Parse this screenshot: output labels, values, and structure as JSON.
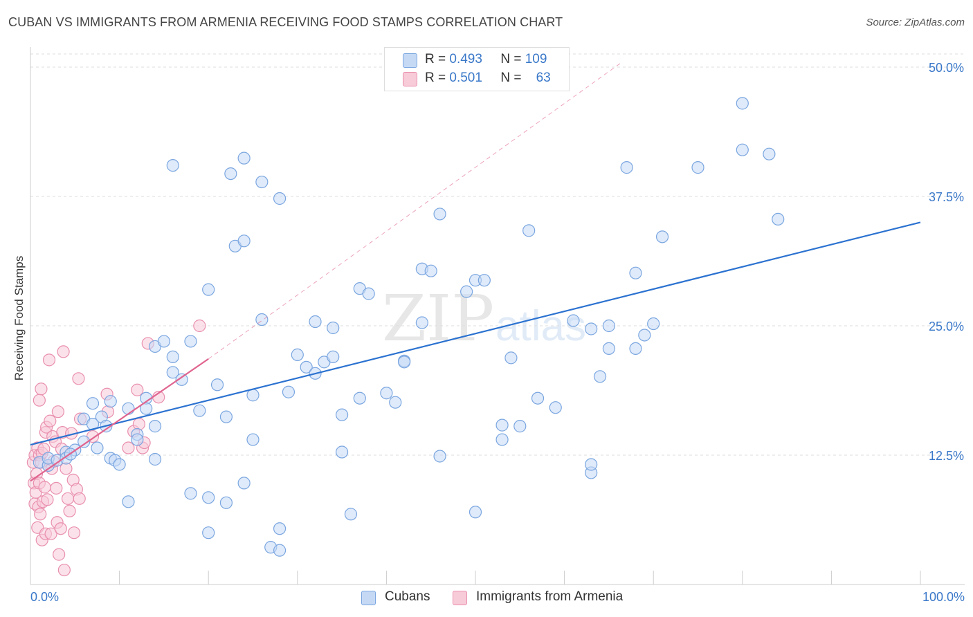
{
  "header": {
    "title": "CUBAN VS IMMIGRANTS FROM ARMENIA RECEIVING FOOD STAMPS CORRELATION CHART",
    "source": "Source: ZipAtlas.com"
  },
  "watermark": {
    "zip": "ZIP",
    "atlas": "atlas"
  },
  "legend": {
    "row1": {
      "r_label": "R =",
      "r_value": "0.493",
      "n_label": "N =",
      "n_value": "109"
    },
    "row2": {
      "r_label": "R =",
      "r_value": "0.501",
      "n_label": "N =",
      "n_value": "63"
    }
  },
  "colors": {
    "blue_fill": "#c5d9f5",
    "blue_stroke": "#7aa6e0",
    "blue_line": "#2b72d0",
    "pink_fill": "#f8cbd8",
    "pink_stroke": "#e98fae",
    "pink_line": "#e0648f",
    "grid": "#dddddd",
    "tick_label": "#3a78c9"
  },
  "chart_data": {
    "type": "scatter",
    "title": "CUBAN VS IMMIGRANTS FROM ARMENIA RECEIVING FOOD STAMPS CORRELATION CHART",
    "xlabel": "",
    "ylabel": "Receiving Food Stamps",
    "xlim": [
      0,
      100
    ],
    "ylim": [
      0,
      52
    ],
    "x_tick_labels": [
      "0.0%",
      "100.0%"
    ],
    "y_ticks": [
      12.5,
      25.0,
      37.5,
      50.0
    ],
    "y_tick_labels": [
      "12.5%",
      "25.0%",
      "37.5%",
      "50.0%"
    ],
    "grid": true,
    "legend_position": "bottom-center",
    "series": [
      {
        "name": "Cubans",
        "r": 0.493,
        "n": 109,
        "trend": {
          "x": [
            0,
            100
          ],
          "y": [
            13.5,
            35.0
          ]
        },
        "points": [
          [
            1,
            11.8
          ],
          [
            2,
            11.5
          ],
          [
            2,
            12.2
          ],
          [
            3,
            12.0
          ],
          [
            4,
            12.8
          ],
          [
            4,
            12.2
          ],
          [
            5,
            13.0
          ],
          [
            4.5,
            12.6
          ],
          [
            6,
            16.0
          ],
          [
            6,
            13.8
          ],
          [
            7,
            15.5
          ],
          [
            7,
            17.5
          ],
          [
            7.5,
            13.2
          ],
          [
            8,
            16.2
          ],
          [
            8.5,
            15.3
          ],
          [
            9,
            17.7
          ],
          [
            9,
            12.2
          ],
          [
            9.5,
            12.0
          ],
          [
            10,
            11.6
          ],
          [
            11,
            8.0
          ],
          [
            11,
            17.0
          ],
          [
            12,
            14.5
          ],
          [
            12,
            14.0
          ],
          [
            13,
            18.0
          ],
          [
            13,
            17.0
          ],
          [
            14,
            12.1
          ],
          [
            14,
            15.3
          ],
          [
            14,
            23.0
          ],
          [
            15,
            23.5
          ],
          [
            16,
            20.5
          ],
          [
            16,
            40.5
          ],
          [
            16,
            22.0
          ],
          [
            17,
            19.8
          ],
          [
            18,
            23.5
          ],
          [
            18,
            8.8
          ],
          [
            19,
            16.8
          ],
          [
            20,
            5.0
          ],
          [
            20,
            8.4
          ],
          [
            20,
            28.5
          ],
          [
            21,
            19.3
          ],
          [
            22,
            16.2
          ],
          [
            22,
            7.9
          ],
          [
            22.5,
            39.7
          ],
          [
            23,
            32.7
          ],
          [
            24,
            41.2
          ],
          [
            24,
            33.2
          ],
          [
            24,
            9.8
          ],
          [
            25,
            18.3
          ],
          [
            25,
            14.0
          ],
          [
            26,
            38.9
          ],
          [
            26,
            25.6
          ],
          [
            27,
            3.6
          ],
          [
            28,
            37.3
          ],
          [
            28,
            3.3
          ],
          [
            28,
            5.4
          ],
          [
            29,
            18.6
          ],
          [
            30,
            22.2
          ],
          [
            31,
            21.0
          ],
          [
            32,
            20.4
          ],
          [
            32,
            25.4
          ],
          [
            33,
            21.5
          ],
          [
            34,
            22.0
          ],
          [
            34,
            24.8
          ],
          [
            35,
            12.8
          ],
          [
            35,
            16.4
          ],
          [
            36,
            6.8
          ],
          [
            37,
            28.6
          ],
          [
            37,
            18.0
          ],
          [
            38,
            28.1
          ],
          [
            40,
            18.5
          ],
          [
            41,
            17.6
          ],
          [
            42,
            21.6
          ],
          [
            42,
            21.5
          ],
          [
            44,
            25.3
          ],
          [
            44,
            30.5
          ],
          [
            45,
            30.3
          ],
          [
            46,
            35.8
          ],
          [
            46,
            12.4
          ],
          [
            49,
            28.3
          ],
          [
            50,
            29.4
          ],
          [
            50,
            7.0
          ],
          [
            51,
            29.4
          ],
          [
            53,
            14.0
          ],
          [
            53,
            15.4
          ],
          [
            54,
            21.9
          ],
          [
            55,
            15.3
          ],
          [
            56,
            34.2
          ],
          [
            57,
            18.0
          ],
          [
            59,
            17.1
          ],
          [
            61,
            25.5
          ],
          [
            63,
            24.7
          ],
          [
            63,
            10.8
          ],
          [
            63,
            11.6
          ],
          [
            64,
            20.1
          ],
          [
            65,
            22.8
          ],
          [
            65,
            25.0
          ],
          [
            67,
            40.3
          ],
          [
            68,
            22.8
          ],
          [
            68,
            30.1
          ],
          [
            69,
            24.1
          ],
          [
            70,
            25.2
          ],
          [
            71,
            33.6
          ],
          [
            75,
            40.3
          ],
          [
            80,
            46.5
          ],
          [
            80,
            42.0
          ],
          [
            83,
            41.6
          ],
          [
            84,
            35.3
          ]
        ]
      },
      {
        "name": "Immigrants from Armenia",
        "r": 0.501,
        "n": 63,
        "trend": {
          "x": [
            0,
            20
          ],
          "y": [
            10.0,
            21.8
          ]
        },
        "trend_extension": {
          "x": [
            20,
            66.5
          ],
          "y": [
            21.8,
            50.5
          ]
        },
        "points": [
          [
            0.3,
            11.8
          ],
          [
            0.4,
            9.8
          ],
          [
            0.5,
            12.5
          ],
          [
            0.5,
            7.8
          ],
          [
            0.6,
            8.9
          ],
          [
            0.7,
            10.7
          ],
          [
            0.8,
            5.5
          ],
          [
            0.8,
            13.2
          ],
          [
            0.9,
            7.5
          ],
          [
            1.0,
            12.5
          ],
          [
            1.0,
            17.8
          ],
          [
            1.0,
            9.8
          ],
          [
            1.1,
            6.8
          ],
          [
            1.2,
            11.8
          ],
          [
            1.2,
            18.9
          ],
          [
            1.3,
            4.3
          ],
          [
            1.3,
            12.7
          ],
          [
            1.4,
            8.0
          ],
          [
            1.5,
            13.1
          ],
          [
            1.6,
            9.4
          ],
          [
            1.7,
            14.7
          ],
          [
            1.7,
            4.9
          ],
          [
            1.8,
            15.2
          ],
          [
            1.9,
            8.2
          ],
          [
            2.0,
            11.5
          ],
          [
            2.1,
            21.7
          ],
          [
            2.2,
            15.8
          ],
          [
            2.3,
            4.9
          ],
          [
            2.4,
            11.2
          ],
          [
            2.5,
            14.3
          ],
          [
            2.6,
            11.9
          ],
          [
            2.8,
            13.8
          ],
          [
            2.9,
            9.3
          ],
          [
            3.0,
            6.0
          ],
          [
            3.1,
            16.7
          ],
          [
            3.2,
            2.9
          ],
          [
            3.4,
            5.4
          ],
          [
            3.5,
            13.1
          ],
          [
            3.6,
            14.7
          ],
          [
            3.7,
            22.5
          ],
          [
            3.8,
            1.4
          ],
          [
            4.0,
            11.2
          ],
          [
            4.2,
            8.3
          ],
          [
            4.4,
            7.1
          ],
          [
            4.6,
            14.6
          ],
          [
            4.8,
            10.1
          ],
          [
            4.9,
            5.0
          ],
          [
            5.2,
            9.2
          ],
          [
            5.4,
            19.9
          ],
          [
            5.5,
            8.3
          ],
          [
            5.6,
            16.0
          ],
          [
            7.0,
            14.3
          ],
          [
            8.6,
            18.4
          ],
          [
            8.7,
            16.7
          ],
          [
            11.0,
            13.2
          ],
          [
            11.6,
            14.8
          ],
          [
            12.0,
            18.8
          ],
          [
            12.2,
            15.5
          ],
          [
            12.6,
            13.2
          ],
          [
            12.8,
            13.7
          ],
          [
            13.2,
            23.3
          ],
          [
            14.4,
            18.1
          ],
          [
            19.0,
            25.0
          ]
        ]
      }
    ]
  },
  "bottom_legend": {
    "item1": "Cubans",
    "item2": "Immigrants from Armenia"
  }
}
